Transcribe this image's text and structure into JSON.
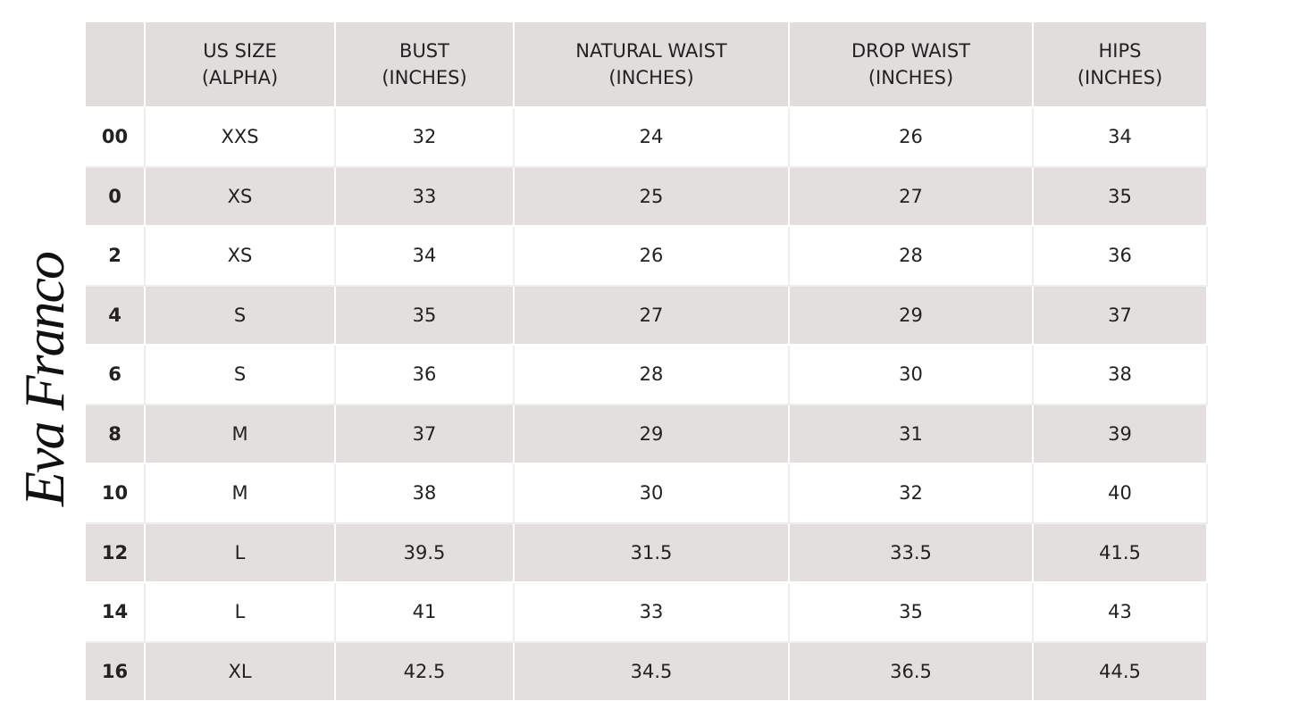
{
  "brand": "Eva Franco",
  "table": {
    "header": [
      [
        "US SIZE",
        "(ALPHA)"
      ],
      [
        "BUST",
        "(INCHES)"
      ],
      [
        "NATURAL WAIST",
        "(INCHES)"
      ],
      [
        "DROP WAIST",
        "(INCHES)"
      ],
      [
        "HIPS",
        "(INCHES)"
      ]
    ],
    "rows": [
      [
        "00",
        "XXS",
        "32",
        "24",
        "26",
        "34"
      ],
      [
        "0",
        "XS",
        "33",
        "25",
        "27",
        "35"
      ],
      [
        "2",
        "XS",
        "34",
        "26",
        "28",
        "36"
      ],
      [
        "4",
        "S",
        "35",
        "27",
        "29",
        "37"
      ],
      [
        "6",
        "S",
        "36",
        "28",
        "30",
        "38"
      ],
      [
        "8",
        "M",
        "37",
        "29",
        "31",
        "39"
      ],
      [
        "10",
        "M",
        "38",
        "30",
        "32",
        "40"
      ],
      [
        "12",
        "L",
        "39.5",
        "31.5",
        "33.5",
        "41.5"
      ],
      [
        "14",
        "L",
        "41",
        "33",
        "35",
        "43"
      ],
      [
        "16",
        "XL",
        "42.5",
        "34.5",
        "36.5",
        "44.5"
      ]
    ]
  }
}
